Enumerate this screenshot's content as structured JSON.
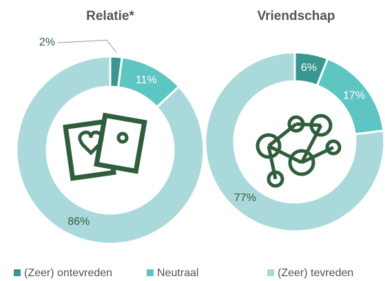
{
  "chart_data": [
    {
      "type": "pie",
      "title": "Relatie*",
      "categories": [
        "(Zeer) ontevreden",
        "Neutraal",
        "(Zeer) tevreden"
      ],
      "colors": [
        "#3a9690",
        "#5ec6c2",
        "#a9d9da"
      ],
      "values": [
        2,
        11,
        86
      ],
      "value_labels": [
        "2%",
        "11%",
        "86%"
      ]
    },
    {
      "type": "pie",
      "title": "Vriendschap",
      "values": [
        6,
        17,
        77
      ],
      "value_labels": [
        "6%",
        "17%",
        "77%"
      ]
    }
  ]
}
